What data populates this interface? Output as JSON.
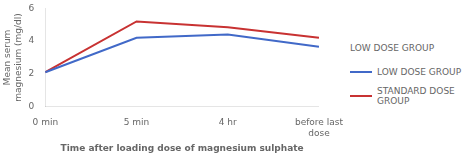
{
  "chart_data": {
    "type": "line",
    "xlabel": "Time after loading dose of magnesium sulphate",
    "ylabel": "Mean serum\nmagnesium (mg/dl)",
    "categories": [
      "0 min",
      "5 min",
      "4 hr",
      "before last\ndose"
    ],
    "series": [
      {
        "name": "LOW DOSE GROUP",
        "color": "#4169c8",
        "values": [
          2.1,
          4.2,
          4.4,
          3.65
        ]
      },
      {
        "name": "STANDARD DOSE\nGROUP",
        "color": "#c83232",
        "values": [
          2.1,
          5.2,
          4.85,
          4.2
        ]
      }
    ],
    "ylim": [
      0,
      6
    ],
    "yticks": [
      0,
      2,
      4,
      6
    ],
    "grid": false,
    "legend": "right",
    "annotations": [
      "LOW DOSE GROUP"
    ]
  }
}
